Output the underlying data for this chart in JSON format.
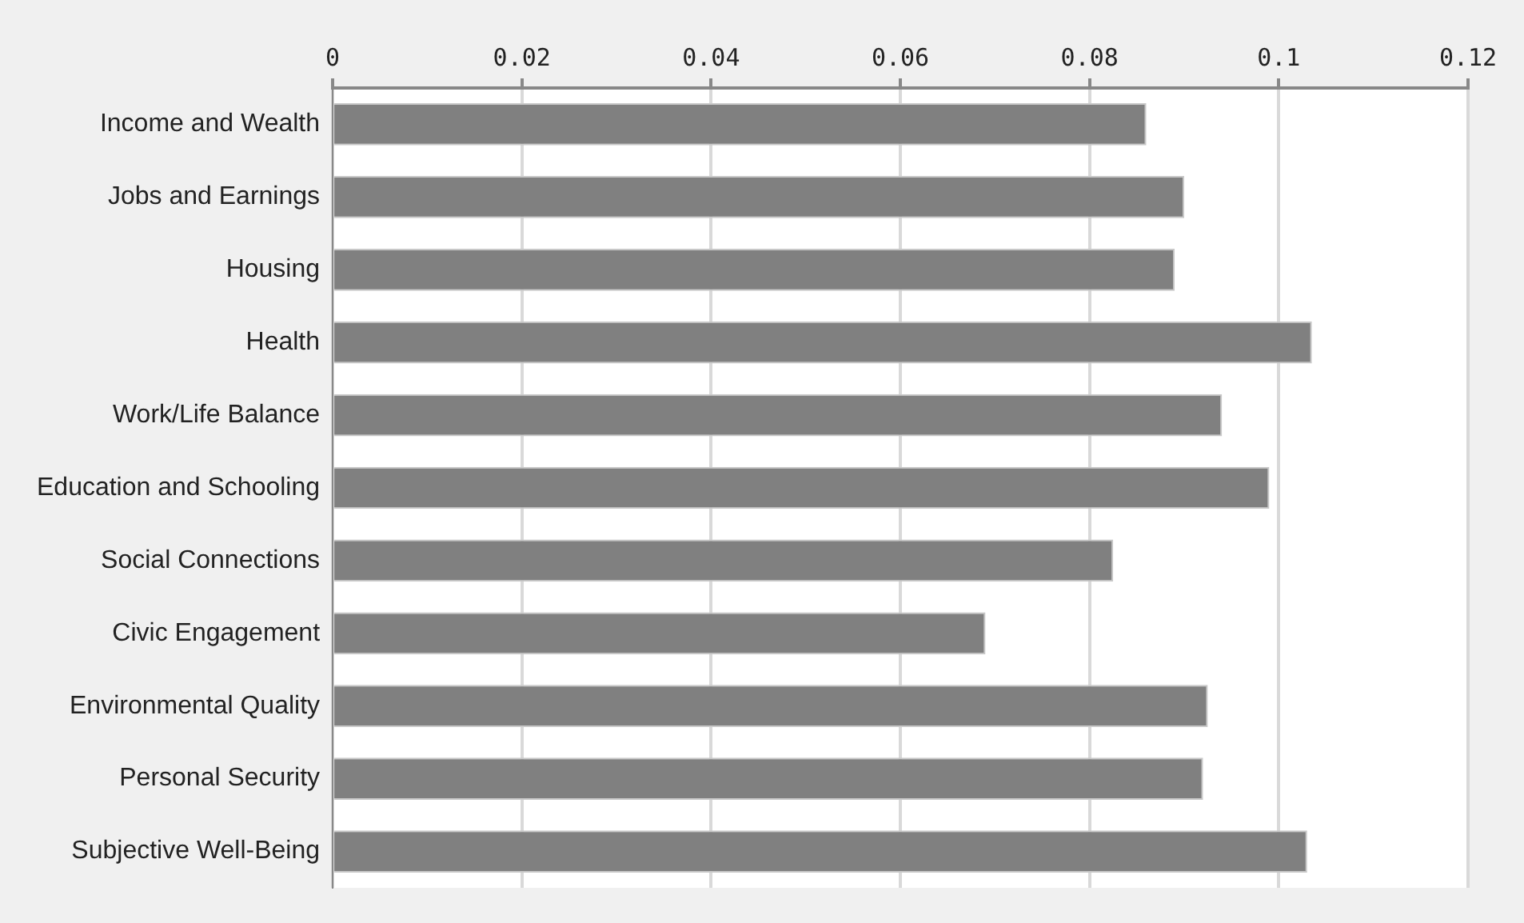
{
  "chart_data": {
    "type": "bar",
    "orientation": "horizontal",
    "categories": [
      "Income and Wealth",
      "Jobs and Earnings",
      "Housing",
      "Health",
      "Work/Life Balance",
      "Education and Schooling",
      "Social Connections",
      "Civic Engagement",
      "Environmental Quality",
      "Personal Security",
      "Subjective Well-Being"
    ],
    "values": [
      0.086,
      0.09,
      0.089,
      0.1035,
      0.094,
      0.099,
      0.0825,
      0.069,
      0.0925,
      0.092,
      0.103
    ],
    "color": "#808080",
    "xlim": [
      0,
      0.12
    ],
    "xticks": [
      0,
      0.02,
      0.04,
      0.06,
      0.08,
      0.1,
      0.12
    ],
    "grid": "x",
    "legend": false
  }
}
